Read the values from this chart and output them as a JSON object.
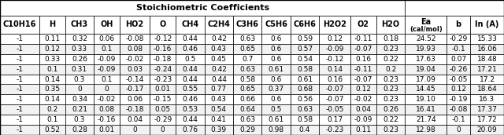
{
  "title": "Stoichiometric Coefficients",
  "col_headers": [
    "C10H16",
    "H",
    "CH3",
    "OH",
    "HO2",
    "O",
    "CH4",
    "C2H4",
    "C3H6",
    "C5H6",
    "C6H6",
    "H2O2",
    "O2",
    "H2O",
    "Ea\n(cal/mol)",
    "b",
    "ln (A)"
  ],
  "rows": [
    [
      "-1",
      "0.11",
      "0.32",
      "0.06",
      "-0.08",
      "-0.12",
      "0.44",
      "0.42",
      "0.63",
      "0.6",
      "0.59",
      "0.12",
      "-0.11",
      "0.18",
      "24.52",
      "-0.29",
      "15.33"
    ],
    [
      "-1",
      "0.12",
      "0.33",
      "0.1",
      "0.08",
      "-0.16",
      "0.46",
      "0.43",
      "0.65",
      "0.6",
      "0.57",
      "-0.09",
      "-0.07",
      "0.23",
      "19.93",
      "-0.1",
      "16.06"
    ],
    [
      "-1",
      "0.33",
      "0.26",
      "-0.09",
      "-0.02",
      "-0.18",
      "0.5",
      "0.45",
      "0.7",
      "0.6",
      "0.54",
      "-0.12",
      "0.16",
      "0.22",
      "17.63",
      "0.07",
      "18.48"
    ],
    [
      "-1",
      "0.1",
      "0.31",
      "-0.09",
      "0.03",
      "-0.24",
      "0.44",
      "0.42",
      "0.63",
      "0.61",
      "0.58",
      "0.14",
      "-0.11",
      "0.2",
      "19.04",
      "-0.26",
      "17.21"
    ],
    [
      "-1",
      "0.14",
      "0.3",
      "0.1",
      "-0.14",
      "-0.23",
      "0.44",
      "0.44",
      "0.58",
      "0.6",
      "0.61",
      "0.16",
      "-0.07",
      "0.23",
      "17.09",
      "-0.05",
      "17.2"
    ],
    [
      "-1",
      "0.35",
      "0",
      "0",
      "-0.17",
      "0.01",
      "0.55",
      "0.77",
      "0.65",
      "0.37",
      "0.68",
      "-0.07",
      "0.12",
      "0.23",
      "14.45",
      "0.12",
      "18.64"
    ],
    [
      "-1",
      "0.14",
      "0.34",
      "-0.02",
      "0.06",
      "-0.15",
      "0.46",
      "0.43",
      "0.66",
      "0.6",
      "0.56",
      "-0.07",
      "-0.02",
      "0.23",
      "19.10",
      "-0.19",
      "16.3"
    ],
    [
      "-1",
      "0.2",
      "0.21",
      "0.08",
      "-0.18",
      "0.05",
      "0.53",
      "0.54",
      "0.64",
      "0.5",
      "0.63",
      "-0.05",
      "0.04",
      "0.26",
      "16.41",
      "-0.08",
      "17.37"
    ],
    [
      "-1",
      "0.1",
      "0.3",
      "-0.16",
      "0.04",
      "-0.29",
      "0.44",
      "0.41",
      "0.63",
      "0.61",
      "0.58",
      "0.17",
      "-0.09",
      "0.22",
      "21.74",
      "-0.1",
      "17.72"
    ],
    [
      "-1",
      "0.52",
      "0.28",
      "0.01",
      "0",
      "0",
      "0.76",
      "0.39",
      "0.29",
      "0.98",
      "0.4",
      "-0.23",
      "0.11",
      "0.23",
      "12.98",
      "0",
      "20.09"
    ]
  ],
  "col_widths_raw": [
    3.0,
    2.0,
    2.2,
    2.0,
    2.3,
    2.0,
    2.2,
    2.2,
    2.2,
    2.2,
    2.2,
    2.4,
    2.0,
    2.2,
    3.2,
    1.8,
    2.6
  ],
  "row_bg_odd": "#ffffff",
  "row_bg_even": "#f2f2f2",
  "header_bg": "#ffffff",
  "font_size": 6.5,
  "header_font_size": 7.0,
  "title_font_size": 8.0,
  "stoich_cols": 14,
  "lw": 0.5
}
